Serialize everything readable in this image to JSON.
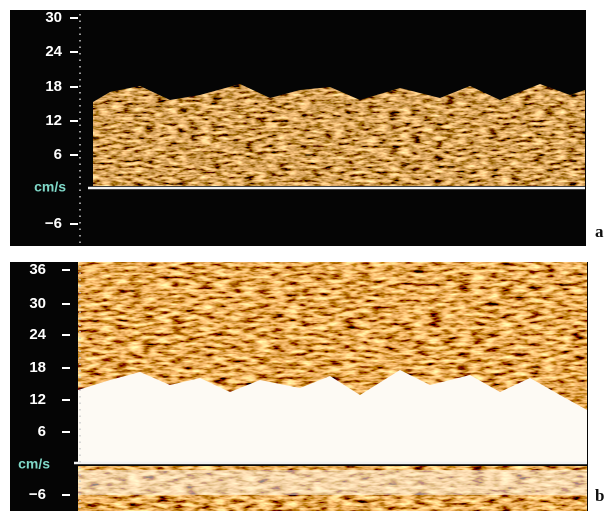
{
  "panels": [
    {
      "label": "a",
      "axis_labels": [
        "30",
        "24",
        "18",
        "12",
        "6",
        "cm/s",
        "−6"
      ]
    },
    {
      "label": "b",
      "axis_labels": [
        "36",
        "30",
        "24",
        "18",
        "12",
        "6",
        "cm/s",
        "−6"
      ]
    }
  ]
}
